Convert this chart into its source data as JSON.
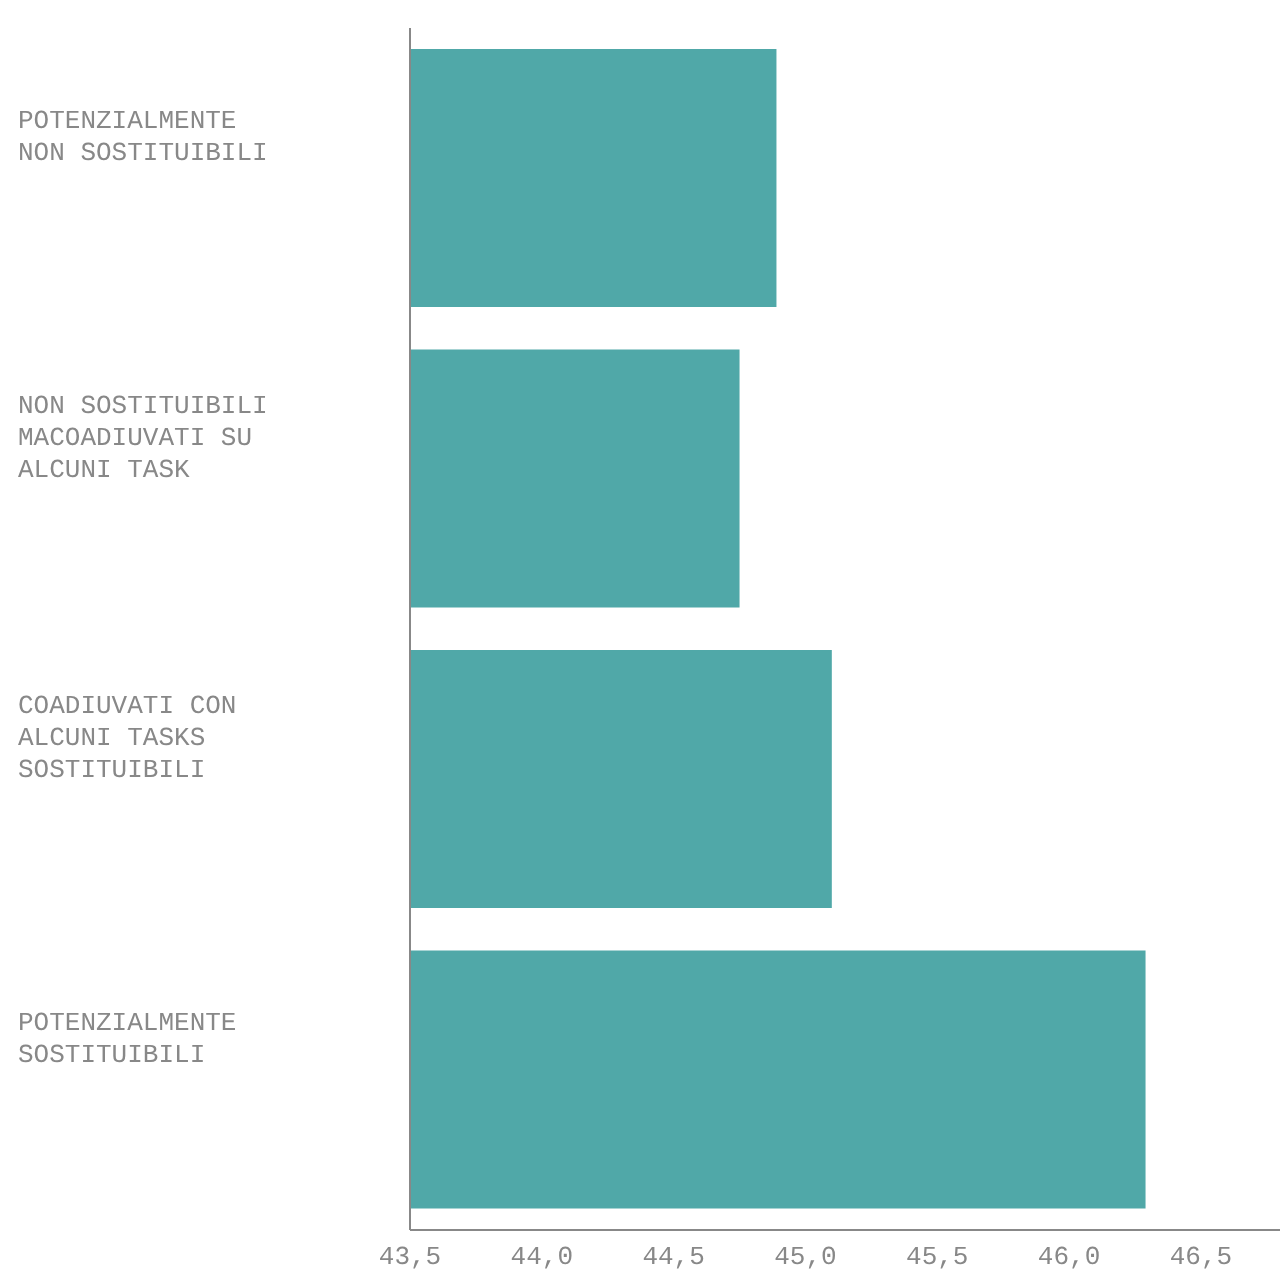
{
  "chart_data": {
    "type": "bar",
    "orientation": "horizontal",
    "categories": [
      "POTENZIALMENTE\nNON SOSTITUIBILI",
      "NON SOSTITUIBILI\nMACOADIUVATI SU\nALCUNI TASK",
      "COADIUVATI CON\nALCUNI TASKS\nSOSTITUIBILI",
      "POTENZIALMENTE\nSOSTITUIBILI"
    ],
    "values": [
      44.89,
      44.75,
      45.1,
      46.29
    ],
    "color": "#50a8a8",
    "xlim": [
      43.5,
      46.8
    ],
    "xticks": [
      {
        "value": 43.5,
        "label": "43,5"
      },
      {
        "value": 44,
        "label": "44,0"
      },
      {
        "value": 44.5,
        "label": "44,5"
      },
      {
        "value": 45,
        "label": "45,0"
      },
      {
        "value": 45.5,
        "label": "45,5"
      },
      {
        "value": 46,
        "label": "46,0"
      },
      {
        "value": 46.5,
        "label": "46,5"
      }
    ],
    "grid": false,
    "legend": false
  }
}
